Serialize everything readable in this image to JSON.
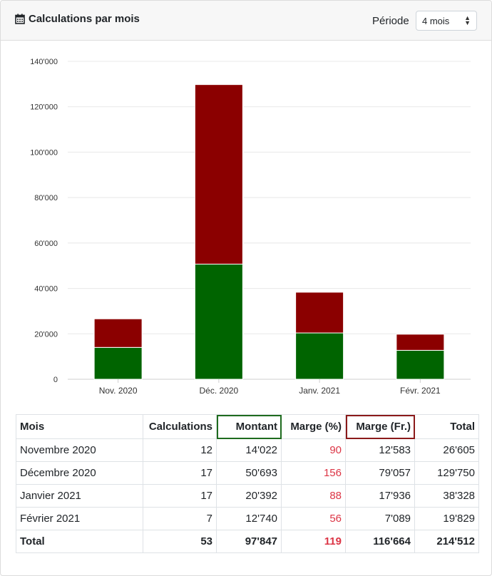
{
  "header": {
    "title": "Calculations par mois",
    "period_label": "Période",
    "period_value": "4 mois"
  },
  "colors": {
    "montant": "#006400",
    "marge": "#8b0000",
    "negative": "#dc3545"
  },
  "chart_data": {
    "type": "bar",
    "stacked": true,
    "categories": [
      "Nov. 2020",
      "Déc. 2020",
      "Janv. 2021",
      "Févr. 2021"
    ],
    "series": [
      {
        "name": "Montant",
        "values": [
          14022,
          50693,
          20392,
          12740
        ]
      },
      {
        "name": "Marge (Fr.)",
        "values": [
          12583,
          79057,
          17936,
          7089
        ]
      }
    ],
    "ylim": [
      0,
      140000
    ],
    "yticks": [
      "0",
      "20'000",
      "40'000",
      "60'000",
      "80'000",
      "100'000",
      "120'000",
      "140'000"
    ],
    "grid": true
  },
  "table": {
    "headers": [
      "Mois",
      "Calculations",
      "Montant",
      "Marge (%)",
      "Marge (Fr.)",
      "Total"
    ],
    "rows": [
      [
        "Novembre 2020",
        "12",
        "14'022",
        "90",
        "12'583",
        "26'605"
      ],
      [
        "Décembre 2020",
        "17",
        "50'693",
        "156",
        "79'057",
        "129'750"
      ],
      [
        "Janvier 2021",
        "17",
        "20'392",
        "88",
        "17'936",
        "38'328"
      ],
      [
        "Février 2021",
        "7",
        "12'740",
        "56",
        "7'089",
        "19'829"
      ]
    ],
    "total": [
      "Total",
      "53",
      "97'847",
      "119",
      "116'664",
      "214'512"
    ]
  }
}
